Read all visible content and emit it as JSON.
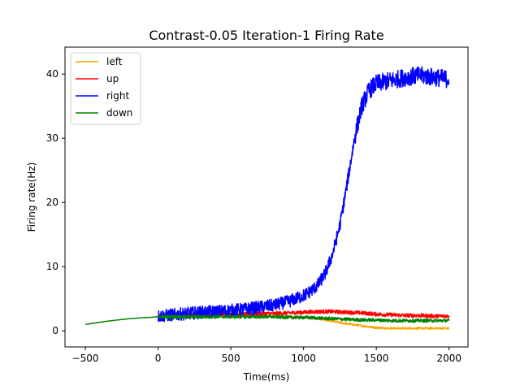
{
  "chart_data": {
    "type": "line",
    "title": "Contrast-0.05 Iteration-1 Firing Rate",
    "xlabel": "Time(ms)",
    "ylabel": "Firing rate(Hz)",
    "xlim": [
      -640,
      2130
    ],
    "ylim": [
      -2.5,
      44.2
    ],
    "xticks": [
      -500,
      0,
      500,
      1000,
      1500,
      2000
    ],
    "yticks": [
      0,
      10,
      20,
      30,
      40
    ],
    "xtick_labels": [
      "−500",
      "0",
      "500",
      "1000",
      "1500",
      "2000"
    ],
    "ytick_labels": [
      "0",
      "10",
      "20",
      "30",
      "40"
    ],
    "grid": false,
    "legend_position": "top-left",
    "shared_baseline": {
      "x": [
        -500,
        -400,
        -300,
        -200,
        -100,
        0
      ],
      "y": [
        1.0,
        1.35,
        1.65,
        1.9,
        2.05,
        2.2
      ]
    },
    "series": [
      {
        "name": "left",
        "color": "#ffa500",
        "x": [
          0,
          100,
          200,
          300,
          400,
          500,
          600,
          700,
          800,
          900,
          1000,
          1100,
          1200,
          1300,
          1400,
          1500,
          1600,
          1700,
          1800,
          1900,
          2000
        ],
        "y": [
          2.2,
          2.3,
          2.35,
          2.4,
          2.4,
          2.4,
          2.35,
          2.3,
          2.3,
          2.2,
          2.1,
          1.9,
          1.5,
          1.1,
          0.8,
          0.5,
          0.4,
          0.4,
          0.4,
          0.4,
          0.4
        ],
        "noise": 0.15
      },
      {
        "name": "up",
        "color": "#ff0000",
        "x": [
          0,
          100,
          200,
          300,
          400,
          500,
          600,
          700,
          800,
          900,
          1000,
          1100,
          1200,
          1300,
          1400,
          1500,
          1600,
          1700,
          1800,
          1900,
          2000
        ],
        "y": [
          2.3,
          2.4,
          2.5,
          2.5,
          2.6,
          2.6,
          2.6,
          2.7,
          2.7,
          2.8,
          2.9,
          3.0,
          3.0,
          2.9,
          2.8,
          2.6,
          2.5,
          2.4,
          2.4,
          2.3,
          2.3
        ],
        "noise": 0.3
      },
      {
        "name": "right",
        "color": "#0000ff",
        "x": [
          0,
          100,
          200,
          300,
          400,
          500,
          600,
          700,
          800,
          900,
          1000,
          1050,
          1100,
          1150,
          1200,
          1250,
          1300,
          1350,
          1400,
          1450,
          1500,
          1600,
          1700,
          1800,
          1900,
          2000
        ],
        "y": [
          2.3,
          2.5,
          2.7,
          2.9,
          3.0,
          3.2,
          3.4,
          3.7,
          4.0,
          4.6,
          5.5,
          6.2,
          7.2,
          9.0,
          12.0,
          16.5,
          23.0,
          30.0,
          35.0,
          37.5,
          38.5,
          39.0,
          39.5,
          39.8,
          39.5,
          39.2
        ],
        "noise": 1.0
      },
      {
        "name": "down",
        "color": "#008000",
        "x": [
          0,
          100,
          200,
          300,
          400,
          500,
          600,
          700,
          800,
          900,
          1000,
          1100,
          1200,
          1300,
          1400,
          1500,
          1600,
          1700,
          1800,
          1900,
          2000
        ],
        "y": [
          2.2,
          2.2,
          2.2,
          2.2,
          2.2,
          2.2,
          2.2,
          2.2,
          2.2,
          2.1,
          2.1,
          2.0,
          1.9,
          1.8,
          1.7,
          1.7,
          1.6,
          1.6,
          1.6,
          1.6,
          1.6
        ],
        "noise": 0.25
      }
    ]
  }
}
